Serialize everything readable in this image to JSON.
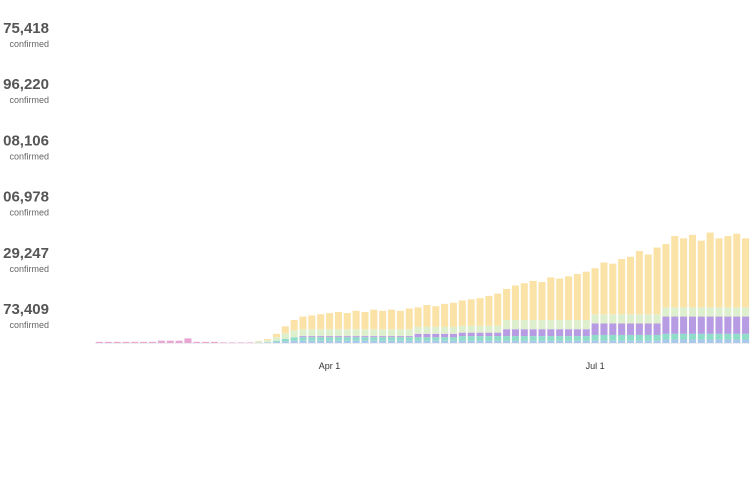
{
  "stats": [
    {
      "value": "75,418",
      "label": "confirmed"
    },
    {
      "value": "96,220",
      "label": "confirmed"
    },
    {
      "value": "08,106",
      "label": "confirmed"
    },
    {
      "value": "06,978",
      "label": "confirmed"
    },
    {
      "value": "29,247",
      "label": "confirmed"
    },
    {
      "value": "73,409",
      "label": "confirmed"
    }
  ],
  "chart_data": {
    "type": "stacked_bar",
    "ylim": [
      0,
      100
    ],
    "categories": [
      null,
      null,
      null,
      null,
      null,
      null,
      null,
      null,
      null,
      null,
      null,
      null,
      null,
      null,
      null,
      null,
      null,
      null,
      null,
      null,
      null,
      null,
      null,
      null,
      null,
      null,
      "Apr 1",
      null,
      null,
      null,
      null,
      null,
      null,
      null,
      null,
      null,
      null,
      null,
      null,
      null,
      null,
      null,
      null,
      null,
      null,
      null,
      null,
      null,
      null,
      null,
      null,
      null,
      null,
      null,
      null,
      null,
      "Jul 1",
      null,
      null,
      null,
      null,
      null,
      null,
      null,
      null,
      null,
      null,
      null,
      null,
      null,
      null,
      null,
      null,
      null
    ],
    "series": [
      {
        "color": "#e7a6d3",
        "values": [
          1,
          1,
          1,
          1,
          1,
          1,
          1,
          2,
          2,
          2,
          4,
          1,
          1,
          1,
          0.5,
          0.5,
          0.5,
          0.5,
          0,
          0,
          0,
          0,
          0,
          0,
          0,
          0,
          0,
          0,
          0,
          0,
          0,
          0,
          0,
          0,
          0,
          0,
          0,
          0,
          0,
          0,
          0,
          0,
          0,
          0,
          0,
          0,
          0,
          0,
          0,
          0,
          0,
          0,
          0,
          0,
          0,
          0,
          0,
          0,
          0,
          0,
          0,
          0,
          0,
          0,
          0,
          0,
          0,
          0,
          0,
          0,
          0,
          0,
          0,
          0
        ]
      },
      {
        "color": "#a9c8ec",
        "values": [
          0,
          0,
          0,
          0,
          0,
          0,
          0,
          0,
          0,
          0,
          0,
          0,
          0,
          0,
          0,
          0,
          0,
          0,
          0.3,
          0.5,
          1,
          1.5,
          2,
          2,
          2,
          2,
          2,
          2,
          2,
          2,
          2,
          2,
          2,
          2,
          2,
          2,
          2,
          2,
          2,
          2,
          2,
          2,
          2,
          2,
          2,
          2,
          2,
          2,
          2,
          2,
          2,
          2,
          2,
          2,
          2,
          2,
          2,
          2,
          2,
          2,
          2,
          2,
          2,
          2,
          3,
          3,
          3,
          3,
          3,
          3,
          3,
          3,
          3,
          3
        ]
      },
      {
        "color": "#8fdcc8",
        "values": [
          0,
          0,
          0,
          0,
          0,
          0,
          0,
          0,
          0,
          0,
          0,
          0,
          0,
          0,
          0,
          0,
          0,
          0,
          0,
          0,
          1,
          2,
          3,
          3,
          3,
          3,
          3,
          3,
          3,
          3,
          3,
          3,
          3,
          3,
          3,
          3,
          3,
          3,
          3,
          3,
          3,
          4,
          4,
          4,
          4,
          4,
          4,
          4,
          4,
          4,
          4,
          4,
          4,
          4,
          4,
          4,
          5,
          5,
          5,
          5,
          5,
          5,
          5,
          5,
          5,
          5,
          5,
          5,
          5,
          5,
          5,
          5,
          5,
          5
        ]
      },
      {
        "color": "#b79be3",
        "values": [
          0,
          0,
          0,
          0,
          0,
          0,
          0,
          0,
          0,
          0,
          0,
          0,
          0,
          0,
          0,
          0,
          0,
          0,
          0,
          0,
          0,
          0,
          0,
          1,
          1,
          1,
          1,
          1,
          1,
          1,
          1,
          1,
          1,
          1,
          1,
          1,
          3,
          3,
          3,
          3,
          3,
          3,
          3,
          3,
          3,
          3,
          6,
          6,
          6,
          6,
          6,
          6,
          6,
          6,
          6,
          6,
          10,
          10,
          10,
          10,
          10,
          10,
          10,
          10,
          15,
          15,
          15,
          15,
          15,
          15,
          15,
          15,
          15,
          15
        ]
      },
      {
        "color": "#ddefcc",
        "values": [
          0,
          0,
          0,
          0,
          0,
          0,
          0,
          0,
          0,
          0,
          0,
          0,
          0,
          0,
          0,
          0,
          0,
          0,
          1,
          2,
          3,
          5,
          6,
          6,
          6,
          6,
          6,
          6,
          6,
          6,
          6,
          6,
          6,
          6,
          6,
          6,
          6,
          6,
          6,
          6,
          6,
          6,
          6,
          6,
          6,
          6,
          8,
          8,
          8,
          8,
          8,
          8,
          8,
          8,
          8,
          8,
          8,
          8,
          8,
          8,
          8,
          8,
          8,
          8,
          8,
          8,
          8,
          8,
          8,
          8,
          8,
          8,
          8,
          8
        ]
      },
      {
        "color": "#fbe3a8",
        "values": [
          0,
          0,
          0,
          0,
          0,
          0,
          0,
          0,
          0,
          0,
          0,
          0,
          0,
          0,
          0,
          0,
          0,
          0,
          0.5,
          1,
          3,
          6,
          9,
          11,
          12,
          13,
          14,
          15,
          14,
          16,
          15,
          17,
          16,
          17,
          16,
          18,
          17,
          19,
          18,
          20,
          21,
          22,
          23,
          24,
          26,
          28,
          27,
          30,
          32,
          34,
          33,
          37,
          36,
          38,
          40,
          42,
          40,
          45,
          44,
          48,
          50,
          55,
          52,
          58,
          55,
          62,
          60,
          63,
          58,
          65,
          60,
          62,
          64,
          60
        ]
      }
    ]
  }
}
